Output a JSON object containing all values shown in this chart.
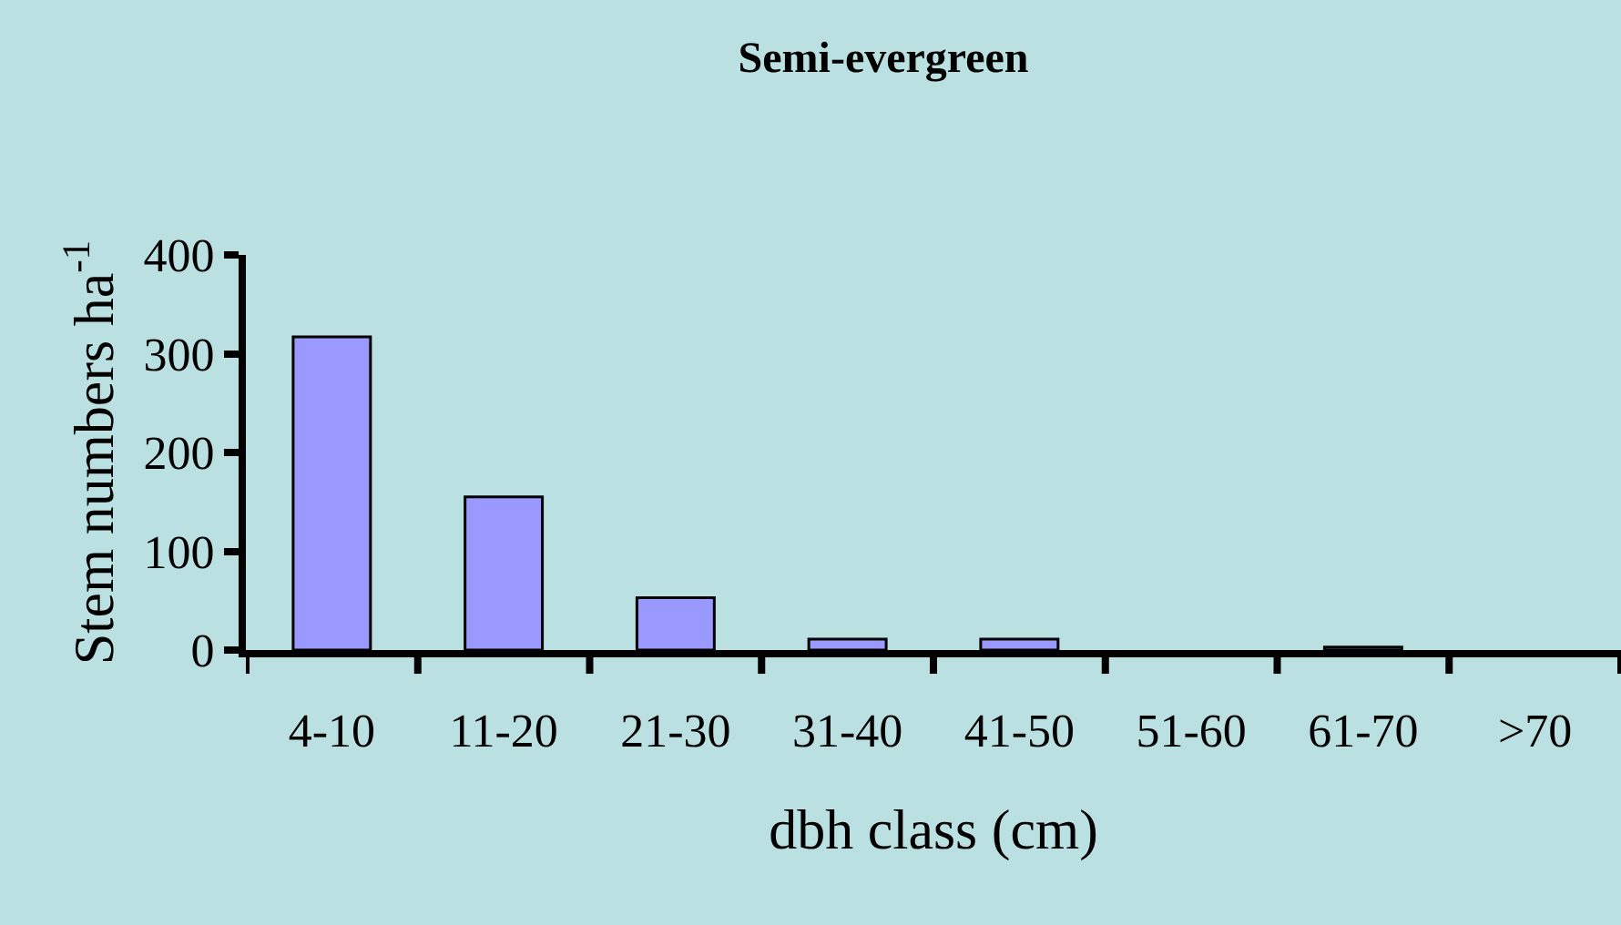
{
  "chart_data": {
    "type": "bar",
    "title": "Semi-evergreen",
    "xlabel": "dbh class (cm)",
    "ylabel": "Stem numbers ha$^{-1}$",
    "categories": [
      "4-10",
      "11-20",
      "21-30",
      "31-40",
      "41-50",
      "51-60",
      "61-70",
      ">70"
    ],
    "values": [
      317,
      155,
      53,
      11,
      11,
      0,
      3,
      0
    ],
    "color": "#9999ff",
    "ylim": [
      0,
      400
    ],
    "yticks": [
      0,
      100,
      200,
      300,
      400
    ],
    "grid": false
  }
}
